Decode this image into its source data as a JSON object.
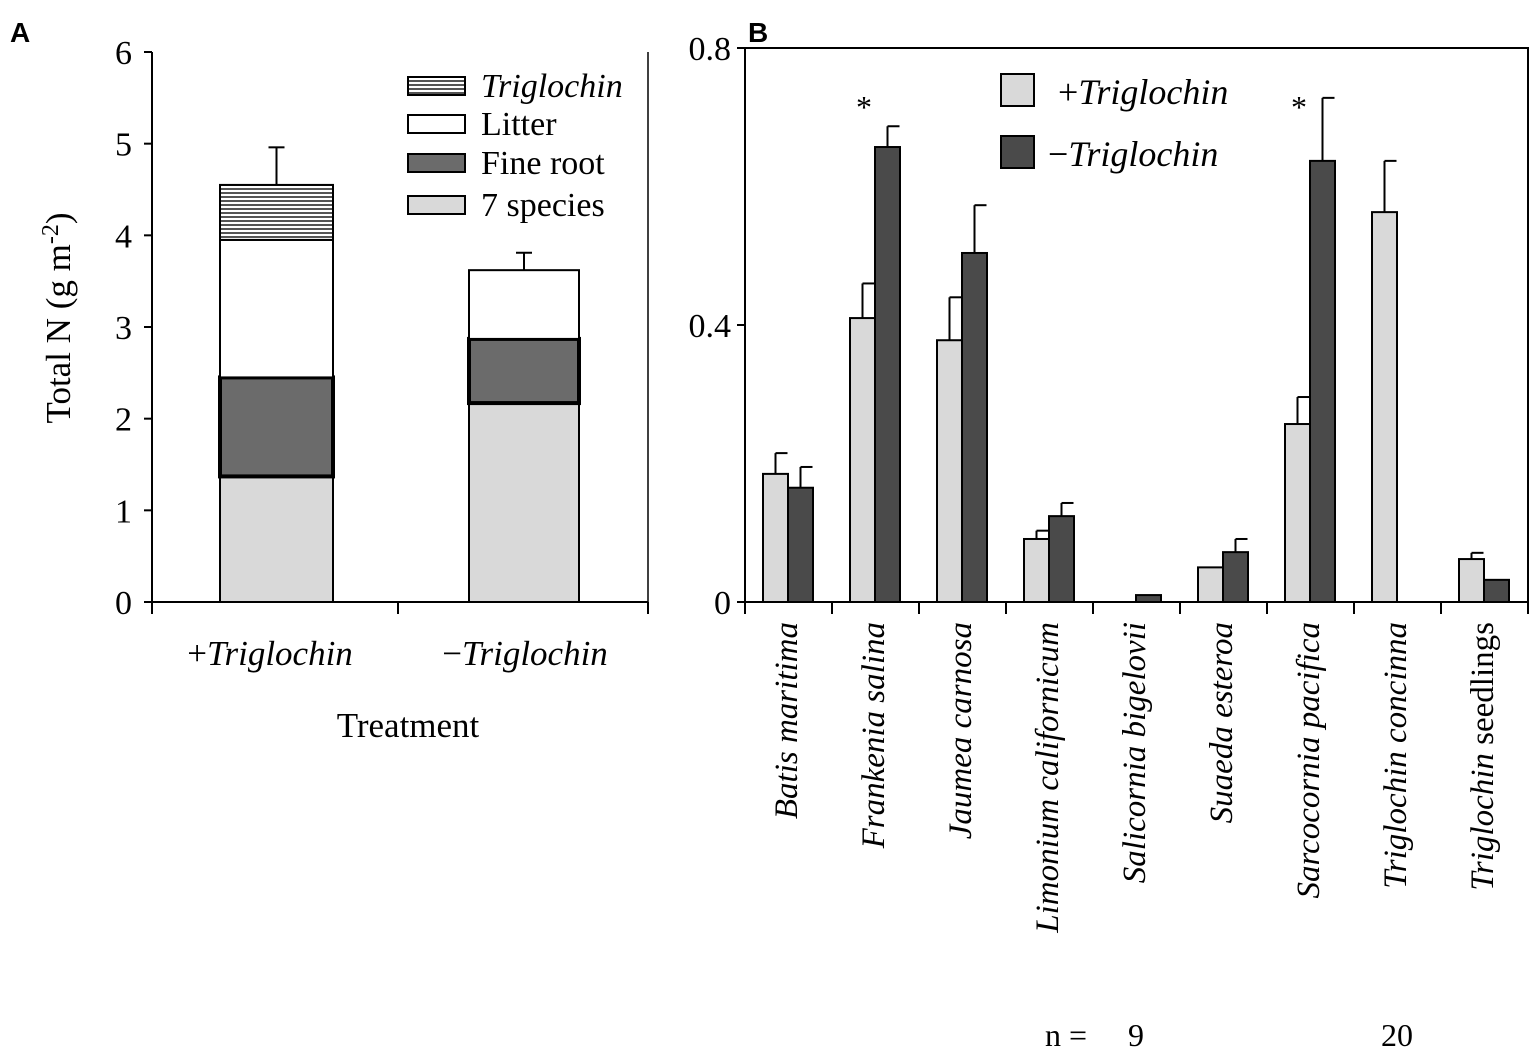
{
  "chart_data": [
    {
      "panel": "A",
      "type": "bar",
      "stacked": true,
      "xlabel": "Treatment",
      "ylabel": "Total N (g m-2)",
      "ylabel_parts": [
        "Total N (g m",
        "-2",
        ")"
      ],
      "ylim": [
        0,
        6
      ],
      "yticks": [
        0,
        1,
        2,
        3,
        4,
        5,
        6
      ],
      "categories": [
        [
          {
            "text": "+",
            "italic": false
          },
          {
            "text": "Triglochin",
            "italic": true
          }
        ],
        [
          {
            "text": "−",
            "italic": false
          },
          {
            "text": "Triglochin",
            "italic": true
          }
        ]
      ],
      "legend_placement": "top-right",
      "series": [
        {
          "name": "7 species",
          "color": "#d9d9d9",
          "values": [
            1.37,
            2.17
          ]
        },
        {
          "name": "Fine root",
          "color": "#6b6b6b",
          "values": [
            1.08,
            0.7
          ]
        },
        {
          "name": "Litter",
          "color": "#ffffff",
          "values": [
            1.5,
            0.75
          ]
        },
        {
          "name": "Triglochin",
          "name_italic": true,
          "color": "#888888",
          "pattern": "horizontal-lines",
          "values": [
            0.6,
            0
          ]
        }
      ],
      "totals": [
        4.55,
        3.62
      ],
      "error_upper": [
        4.96,
        3.81
      ]
    },
    {
      "panel": "B",
      "type": "bar",
      "ylim": [
        0,
        0.8
      ],
      "yticks": [
        "0",
        "0.4",
        "0.8"
      ],
      "ytick_values": [
        0,
        0.4,
        0.8
      ],
      "legend_placement": "top-center",
      "categories": [
        [
          {
            "text": "Batis maritima",
            "italic": true
          }
        ],
        [
          {
            "text": "Frankenia salina",
            "italic": true
          }
        ],
        [
          {
            "text": "Jaumea carnosa",
            "italic": true
          }
        ],
        [
          {
            "text": "Limonium californicum",
            "italic": true
          }
        ],
        [
          {
            "text": "Salicornia bigelovii",
            "italic": true
          }
        ],
        [
          {
            "text": "Suaeda esteroa",
            "italic": true
          }
        ],
        [
          {
            "text": "Sarcocornia pacifica",
            "italic": true
          }
        ],
        [
          {
            "text": "Triglochin concinna",
            "italic": true
          }
        ],
        [
          {
            "text": "Triglochin",
            "italic": true
          },
          {
            "text": " seedlings",
            "italic": false
          }
        ]
      ],
      "series": [
        {
          "name": "+Triglochin",
          "name_parts": [
            {
              "text": "+",
              "italic": false
            },
            {
              "text": "Triglochin",
              "italic": true
            }
          ],
          "color": "#d9d9d9",
          "values": [
            0.185,
            0.41,
            0.378,
            0.091,
            0,
            0.05,
            0.257,
            0.563,
            0.062
          ],
          "error_upper": [
            0.215,
            0.46,
            0.44,
            0.103,
            null,
            null,
            0.296,
            0.637,
            0.071
          ]
        },
        {
          "name": "−Triglochin",
          "name_parts": [
            {
              "text": "−",
              "italic": false
            },
            {
              "text": "Triglochin",
              "italic": true
            }
          ],
          "color": "#4a4a4a",
          "values": [
            0.165,
            0.657,
            0.504,
            0.124,
            0.01,
            0.072,
            0.637,
            null,
            0.032
          ],
          "error_upper": [
            0.195,
            0.687,
            0.573,
            0.143,
            null,
            0.091,
            0.728,
            null,
            null
          ]
        }
      ],
      "significance": [
        {
          "category_index": 1,
          "mark": "*"
        },
        {
          "category_index": 6,
          "mark": "*"
        }
      ],
      "n_label": "n =",
      "n_values": [
        {
          "category_index": 4,
          "value": "9"
        },
        {
          "category_index": 7,
          "value": "20"
        }
      ]
    }
  ],
  "panel_labels": [
    "A",
    "B"
  ]
}
